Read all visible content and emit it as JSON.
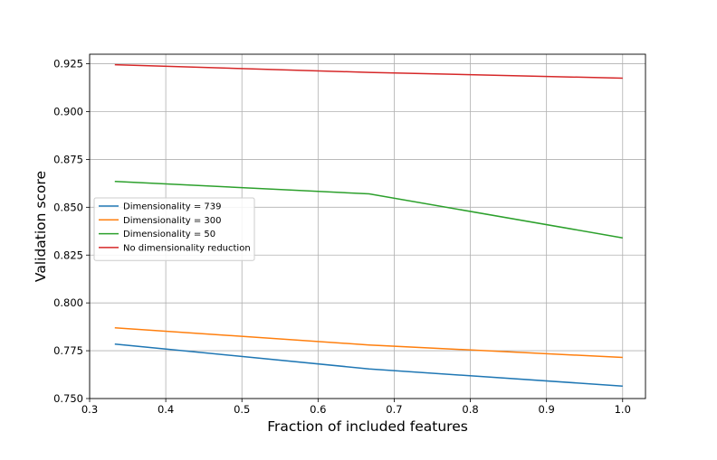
{
  "chart_data": {
    "type": "line",
    "title": "",
    "xlabel": "Fraction of included features",
    "ylabel": "Validation score",
    "xlim": [
      0.3,
      1.03
    ],
    "ylim": [
      0.75,
      0.93
    ],
    "x_ticks": [
      0.3,
      0.4,
      0.5,
      0.6,
      0.7,
      0.8,
      0.9,
      1.0
    ],
    "x_tick_labels": [
      "0.3",
      "0.4",
      "0.5",
      "0.6",
      "0.7",
      "0.8",
      "0.9",
      "1.0"
    ],
    "y_ticks": [
      0.75,
      0.775,
      0.8,
      0.825,
      0.85,
      0.875,
      0.9,
      0.925
    ],
    "y_tick_labels": [
      "0.750",
      "0.775",
      "0.800",
      "0.825",
      "0.850",
      "0.875",
      "0.900",
      "0.925"
    ],
    "grid": true,
    "legend_position": "center-left",
    "x": [
      0.333,
      0.667,
      1.0
    ],
    "series": [
      {
        "name": "Dimensionality = 739",
        "color": "#1f77b4",
        "values": [
          0.7785,
          0.7655,
          0.7565
        ]
      },
      {
        "name": "Dimensionality = 300",
        "color": "#ff7f0e",
        "values": [
          0.787,
          0.778,
          0.7715
        ]
      },
      {
        "name": "Dimensionality = 50",
        "color": "#2ca02c",
        "values": [
          0.8635,
          0.857,
          0.834
        ]
      },
      {
        "name": "No dimensionality reduction",
        "color": "#d62728",
        "values": [
          0.9245,
          0.9205,
          0.9175
        ]
      }
    ]
  }
}
